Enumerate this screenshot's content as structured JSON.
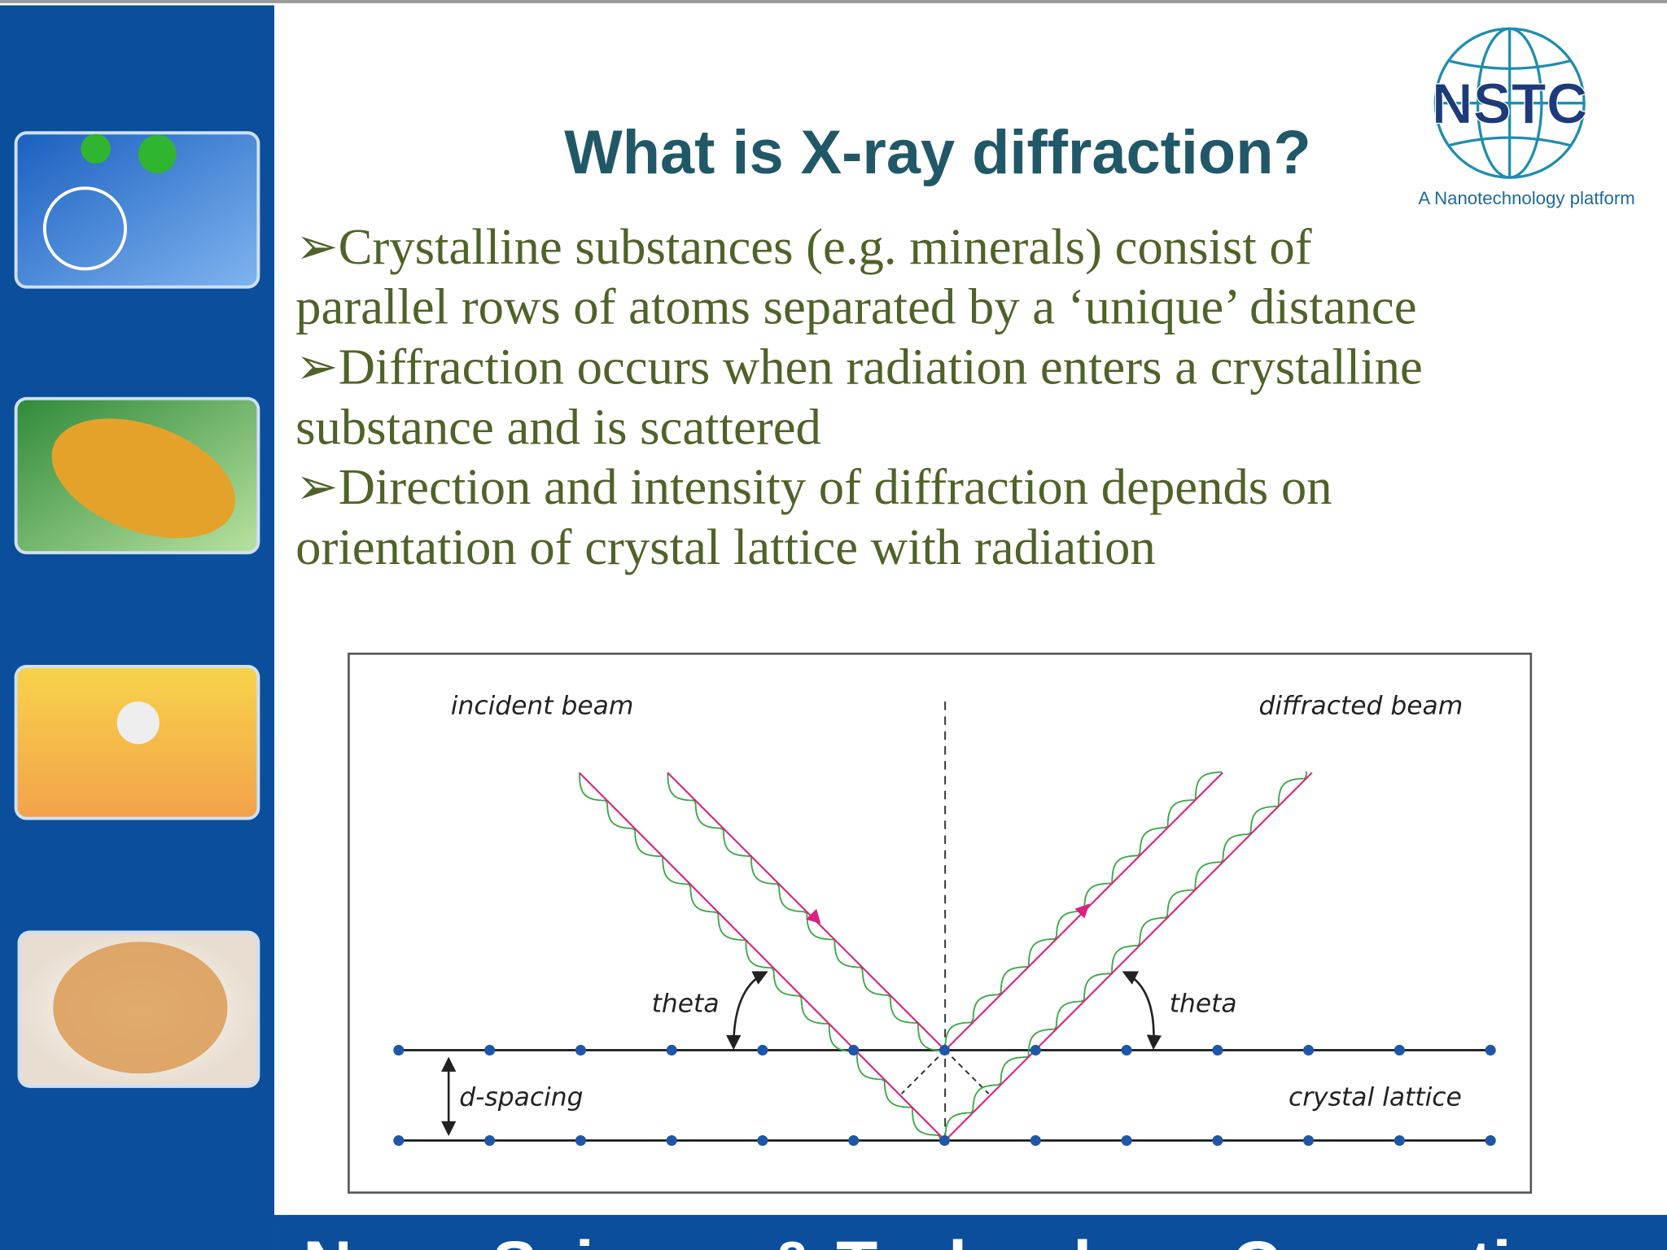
{
  "slide": {
    "logo": {
      "name": "NSTC",
      "tagline": "A Nanotechnology platform"
    },
    "title": "What is X-ray diffraction?",
    "bullets": [
      [
        "➢Crystalline substances (e.g. minerals) consist of",
        "parallel rows of atoms separated by a ‘unique’ distance"
      ],
      [
        "➢Diffraction occurs when radiation enters a crystalline",
        "substance and is scattered"
      ],
      [
        "➢Direction and intensity of diffraction depends on",
        "orientation of crystal lattice with radiation"
      ]
    ],
    "diagram": {
      "incident_label": "incident beam",
      "diffracted_label": "diffracted beam",
      "theta_left": "theta",
      "theta_right": "theta",
      "spacing_label": "d-spacing",
      "lattice_label": "crystal lattice"
    },
    "footer": "Nano Science & Technology Consortium"
  }
}
